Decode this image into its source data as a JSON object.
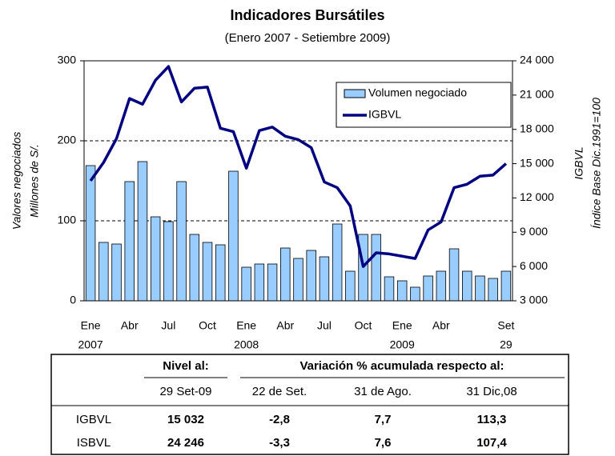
{
  "chart_data": {
    "type": "bar-line",
    "title": "Indicadores Bursátiles",
    "subtitle": "(Enero 2007 - Setiembre 2009)",
    "ylabel": [
      "Valores negociados",
      "Millones de S/."
    ],
    "y2label": [
      "IGBVL",
      "Índice Base Dic.1991=100"
    ],
    "categories": [
      "Ene",
      null,
      null,
      "Abr",
      null,
      null,
      "Jul",
      null,
      null,
      "Oct",
      null,
      null,
      "Ene",
      null,
      null,
      "Abr",
      null,
      null,
      "Jul",
      null,
      null,
      "Oct",
      null,
      null,
      "Ene",
      null,
      null,
      "Abr",
      null,
      null,
      null,
      null,
      "Set"
    ],
    "category_years": [
      "2007",
      null,
      null,
      null,
      null,
      null,
      null,
      null,
      null,
      null,
      null,
      null,
      "2008",
      null,
      null,
      null,
      null,
      null,
      null,
      null,
      null,
      null,
      null,
      null,
      "2009",
      null,
      null,
      null,
      null,
      null,
      null,
      null,
      "29"
    ],
    "series": [
      {
        "name": "Volumen negociado",
        "kind": "bar",
        "color": "#99ccff",
        "values": [
          169,
          73,
          71,
          149,
          174,
          105,
          99,
          149,
          83,
          73,
          70,
          162,
          42,
          46,
          46,
          66,
          53,
          63,
          55,
          96,
          37,
          83,
          83,
          30,
          25,
          17,
          31,
          37,
          65,
          37,
          31,
          28,
          37
        ]
      },
      {
        "name": "IGBVL",
        "kind": "line",
        "axis": "y2",
        "color": "#000080",
        "values": [
          13500,
          15100,
          17200,
          20700,
          20200,
          22300,
          23500,
          20400,
          21600,
          21700,
          18100,
          17800,
          14600,
          17900,
          18200,
          17400,
          17100,
          16400,
          13400,
          12900,
          11300,
          6000,
          7200,
          7100,
          6900,
          6700,
          9200,
          9900,
          12900,
          13200,
          13900,
          14000,
          15000
        ]
      }
    ],
    "ylim": [
      0,
      300
    ],
    "yticks": [
      0,
      100,
      200,
      300
    ],
    "y2lim": [
      3000,
      24000
    ],
    "y2ticks": [
      {
        "value": 3000,
        "label": "3 000"
      },
      {
        "value": 6000,
        "label": "6 000"
      },
      {
        "value": 9000,
        "label": "9 000"
      },
      {
        "value": 12000,
        "label": "12 000"
      },
      {
        "value": 15000,
        "label": "15 000"
      },
      {
        "value": 18000,
        "label": "18 000"
      },
      {
        "value": 21000,
        "label": "21 000"
      },
      {
        "value": 24000,
        "label": "24 000"
      }
    ],
    "grid": true,
    "legend": "upper right"
  },
  "table": {
    "group_headers": [
      "Nivel al:",
      "Variación % acumulada respecto al:"
    ],
    "columns": [
      "29 Set-09",
      "22 de Set.",
      "31 de Ago.",
      "31 Dic,08"
    ],
    "rows": [
      [
        "IGBVL",
        "15 032",
        "-2,8",
        "7,7",
        "113,3"
      ],
      [
        "ISBVL",
        "24 246",
        "-3,3",
        "7,6",
        "107,4"
      ]
    ]
  }
}
